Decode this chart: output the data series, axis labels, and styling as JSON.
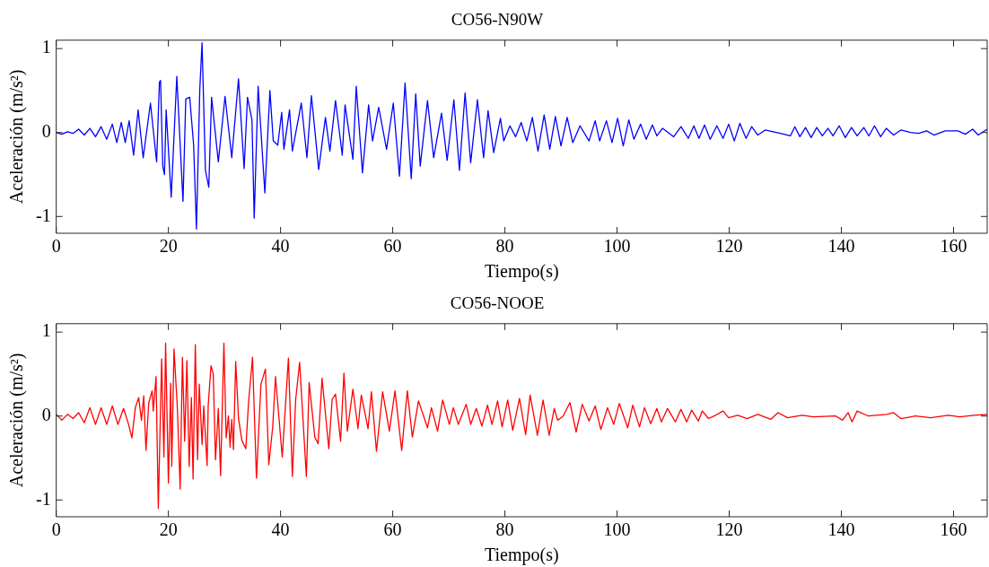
{
  "chart_data": [
    {
      "type": "line",
      "title": "CO56-N90W",
      "xlabel": "Tiempo(s)",
      "ylabel": "Aceleración (m/s²)",
      "xlim": [
        0,
        166
      ],
      "ylim": [
        -1.2,
        1.1
      ],
      "xticks": [
        0,
        20,
        40,
        60,
        80,
        100,
        120,
        140,
        160
      ],
      "yticks": [
        -1,
        0,
        1
      ],
      "grid": false,
      "legend": false,
      "marker": "none",
      "line_style": "solid",
      "x": [
        0,
        1,
        2,
        3,
        4,
        5,
        6,
        7,
        8,
        9,
        10,
        10.8,
        11.6,
        12.3,
        13,
        13.8,
        14.6,
        15.5,
        16.8,
        17.9,
        18.4,
        18.6,
        19.0,
        19.3,
        19.6,
        20.5,
        21.5,
        22.6,
        23.1,
        23.8,
        24.5,
        25.0,
        25.6,
        26.0,
        26.6,
        27.2,
        27.7,
        28.9,
        30.1,
        31.3,
        32.5,
        33.5,
        34.1,
        34.9,
        35.3,
        36.0,
        37.2,
        38.1,
        38.7,
        39.5,
        40.2,
        40.6,
        41.6,
        42.1,
        43.7,
        44.7,
        45.5,
        46.8,
        48.0,
        48.8,
        49.8,
        51.0,
        51.5,
        52.9,
        53.5,
        54.6,
        55.7,
        56.4,
        57.5,
        58.9,
        60.1,
        61.2,
        62.2,
        63.3,
        64.1,
        64.9,
        66.2,
        67.3,
        68.7,
        69.7,
        70.9,
        71.9,
        72.9,
        73.9,
        75.1,
        76.2,
        77.0,
        78.0,
        79.2,
        79.8,
        80.9,
        81.9,
        82.9,
        83.9,
        84.9,
        85.9,
        87.0,
        88.0,
        89.0,
        90.0,
        91.1,
        92.1,
        93.4,
        95.0,
        96.1,
        96.9,
        98.1,
        99.1,
        100.1,
        101.1,
        102.1,
        103.0,
        104.2,
        105.2,
        106.3,
        107.1,
        108.1,
        110.1,
        111.4,
        112.7,
        113.7,
        114.6,
        115.6,
        116.6,
        117.8,
        118.9,
        119.9,
        120.9,
        121.9,
        123.0,
        124.0,
        125.1,
        126.4,
        129.1,
        130.9,
        131.7,
        132.6,
        133.6,
        134.6,
        135.6,
        136.6,
        137.6,
        138.5,
        139.6,
        140.7,
        141.8,
        142.8,
        144.0,
        144.9,
        145.9,
        147.0,
        148.0,
        149.3,
        150.6,
        152.3,
        153.8,
        155.2,
        156.5,
        158.5,
        160.8,
        162.1,
        163.4,
        164.4,
        166.0
      ],
      "series": [
        {
          "color": "#0000ff",
          "values": [
            0,
            -0.02,
            0.01,
            -0.01,
            0.04,
            -0.03,
            0.05,
            -0.05,
            0.07,
            -0.08,
            0.1,
            -0.12,
            0.12,
            -0.12,
            0.14,
            -0.27,
            0.27,
            -0.3,
            0.35,
            -0.35,
            0.6,
            0.62,
            -0.4,
            -0.5,
            0.27,
            -0.77,
            0.67,
            -0.82,
            0.4,
            0.42,
            -0.15,
            -1.15,
            0.52,
            1.07,
            -0.45,
            -0.65,
            0.42,
            -0.35,
            0.43,
            -0.3,
            0.64,
            -0.43,
            0.42,
            0.15,
            -1.02,
            0.55,
            -0.72,
            0.5,
            -0.1,
            -0.15,
            0.24,
            -0.2,
            0.27,
            -0.22,
            0.35,
            -0.3,
            0.44,
            -0.44,
            0.18,
            -0.22,
            0.38,
            -0.27,
            0.33,
            -0.32,
            0.55,
            -0.48,
            0.33,
            -0.1,
            0.3,
            -0.2,
            0.35,
            -0.52,
            0.59,
            -0.55,
            0.46,
            -0.4,
            0.38,
            -0.3,
            0.23,
            -0.33,
            0.39,
            -0.45,
            0.47,
            -0.36,
            0.39,
            -0.3,
            0.26,
            -0.24,
            0.17,
            -0.1,
            0.08,
            -0.05,
            0.12,
            -0.1,
            0.18,
            -0.22,
            0.21,
            -0.2,
            0.19,
            -0.16,
            0.18,
            -0.12,
            0.08,
            -0.1,
            0.14,
            -0.1,
            0.14,
            -0.12,
            0.17,
            -0.16,
            0.15,
            -0.08,
            0.1,
            -0.08,
            0.09,
            -0.04,
            0.05,
            -0.05,
            0.07,
            -0.07,
            0.08,
            -0.07,
            0.09,
            -0.08,
            0.08,
            -0.07,
            0.1,
            -0.1,
            0.11,
            -0.07,
            0.07,
            -0.03,
            0.03,
            -0.01,
            -0.04,
            0.07,
            -0.05,
            0.06,
            -0.06,
            0.06,
            -0.04,
            0.05,
            -0.04,
            0.08,
            -0.06,
            0.06,
            -0.04,
            0.06,
            -0.04,
            0.08,
            -0.05,
            0.05,
            -0.03,
            0.03,
            0.0,
            -0.01,
            0.02,
            -0.03,
            0.02,
            0.02,
            -0.02,
            0.04,
            -0.03,
            0.04
          ]
        }
      ]
    },
    {
      "type": "line",
      "title": "CO56-NOOE",
      "xlabel": "Tiempo(s)",
      "ylabel": "Aceleración (m/s²)",
      "xlim": [
        0,
        166
      ],
      "ylim": [
        -1.2,
        1.1
      ],
      "xticks": [
        0,
        20,
        40,
        60,
        80,
        100,
        120,
        140,
        160
      ],
      "yticks": [
        -1,
        0,
        1
      ],
      "grid": false,
      "legend": false,
      "marker": "none",
      "line_style": "solid",
      "x": [
        0,
        1,
        2,
        3,
        4,
        5,
        6,
        7,
        8,
        9,
        10,
        11,
        12,
        12.9,
        13.5,
        14.1,
        14.7,
        15.2,
        15.6,
        16.0,
        16.5,
        17.1,
        17.3,
        17.8,
        18.2,
        18.8,
        19.2,
        19.5,
        20.0,
        20.4,
        20.6,
        21.0,
        21.6,
        22.1,
        22.5,
        22.9,
        23.3,
        23.7,
        24.1,
        24.4,
        24.8,
        25.2,
        25.5,
        26.0,
        26.3,
        26.9,
        27.1,
        27.6,
        28.0,
        28.4,
        28.9,
        29.3,
        29.9,
        30.3,
        30.7,
        31.0,
        31.3,
        31.6,
        32.0,
        32.5,
        33.1,
        33.8,
        34.3,
        35.0,
        35.7,
        36.5,
        37.3,
        37.9,
        38.6,
        39.1,
        40.3,
        41.4,
        42.1,
        42.7,
        43.4,
        44.6,
        45.1,
        46.1,
        46.7,
        47.4,
        48.6,
        49.2,
        49.8,
        50.7,
        51.3,
        51.9,
        52.9,
        53.8,
        54.4,
        55.6,
        56.2,
        57.1,
        58.2,
        59.4,
        60.4,
        61.6,
        62.6,
        63.5,
        64.6,
        66.2,
        66.9,
        68.0,
        68.9,
        70.1,
        70.8,
        71.7,
        73.1,
        73.9,
        74.9,
        75.9,
        76.9,
        77.7,
        78.7,
        79.5,
        80.5,
        81.4,
        82.6,
        83.7,
        84.5,
        85.8,
        86.8,
        87.9,
        88.8,
        89.4,
        90.4,
        91.6,
        92.7,
        93.8,
        95.0,
        96.1,
        97.1,
        98.3,
        99.4,
        100.4,
        101.9,
        102.8,
        104.0,
        104.9,
        106.0,
        107.1,
        107.9,
        109.0,
        110.4,
        111.4,
        112.4,
        113.3,
        114.5,
        115.2,
        116.3,
        117.6,
        118.9,
        119.9,
        121.5,
        123.2,
        125.1,
        127.4,
        128.7,
        130.4,
        133.0,
        135.0,
        139.0,
        140.2,
        141.2,
        141.9,
        142.8,
        144.8,
        148.1,
        149.3,
        150.6,
        153.2,
        155.9,
        159.1,
        161.1,
        163.7,
        166.0
      ],
      "series": [
        {
          "color": "#ff0000",
          "values": [
            0.02,
            -0.05,
            0.02,
            -0.03,
            0.04,
            -0.08,
            0.1,
            -0.1,
            0.1,
            -0.1,
            0.12,
            -0.1,
            0.09,
            -0.1,
            -0.26,
            0.1,
            0.22,
            -0.05,
            0.24,
            -0.41,
            0.16,
            0.3,
            0.06,
            0.47,
            -1.1,
            0.68,
            -0.49,
            0.87,
            -0.8,
            0.39,
            -0.6,
            0.8,
            0.09,
            -0.87,
            0.7,
            -0.3,
            0.66,
            -0.6,
            0.22,
            -0.75,
            0.85,
            -0.52,
            0.38,
            -0.34,
            0.12,
            -0.59,
            0.13,
            0.6,
            0.5,
            -0.52,
            0.09,
            -0.71,
            0.87,
            -0.26,
            0.0,
            -0.37,
            -0.04,
            -0.4,
            0.65,
            -0.03,
            -0.29,
            -0.39,
            0.17,
            0.7,
            -0.74,
            0.38,
            0.56,
            -0.58,
            -0.13,
            0.47,
            -0.49,
            0.69,
            -0.72,
            0.2,
            0.64,
            -0.72,
            0.4,
            -0.25,
            -0.33,
            0.45,
            -0.39,
            0.2,
            0.26,
            -0.3,
            0.51,
            -0.18,
            0.32,
            -0.15,
            0.25,
            -0.15,
            0.29,
            -0.42,
            0.29,
            -0.18,
            0.3,
            -0.41,
            0.3,
            -0.25,
            0.18,
            -0.14,
            0.1,
            -0.18,
            0.19,
            -0.1,
            0.1,
            -0.1,
            0.14,
            -0.1,
            0.09,
            -0.12,
            0.13,
            -0.1,
            0.18,
            -0.13,
            0.19,
            -0.17,
            0.21,
            -0.22,
            0.25,
            -0.23,
            0.19,
            -0.23,
            0.09,
            -0.05,
            0.0,
            0.16,
            -0.19,
            0.14,
            -0.06,
            0.12,
            -0.16,
            0.1,
            -0.1,
            0.15,
            -0.14,
            0.13,
            -0.13,
            0.1,
            -0.09,
            0.09,
            -0.07,
            0.09,
            -0.07,
            0.08,
            -0.07,
            0.07,
            -0.06,
            0.06,
            -0.03,
            0.01,
            0.06,
            -0.02,
            0.01,
            -0.03,
            0.02,
            -0.04,
            0.04,
            -0.02,
            0.01,
            -0.01,
            0.0,
            -0.05,
            0.04,
            -0.07,
            0.06,
            0.0,
            0.02,
            0.04,
            -0.03,
            0.0,
            -0.02,
            0.01,
            -0.01,
            0.01,
            0.02
          ]
        }
      ]
    }
  ]
}
